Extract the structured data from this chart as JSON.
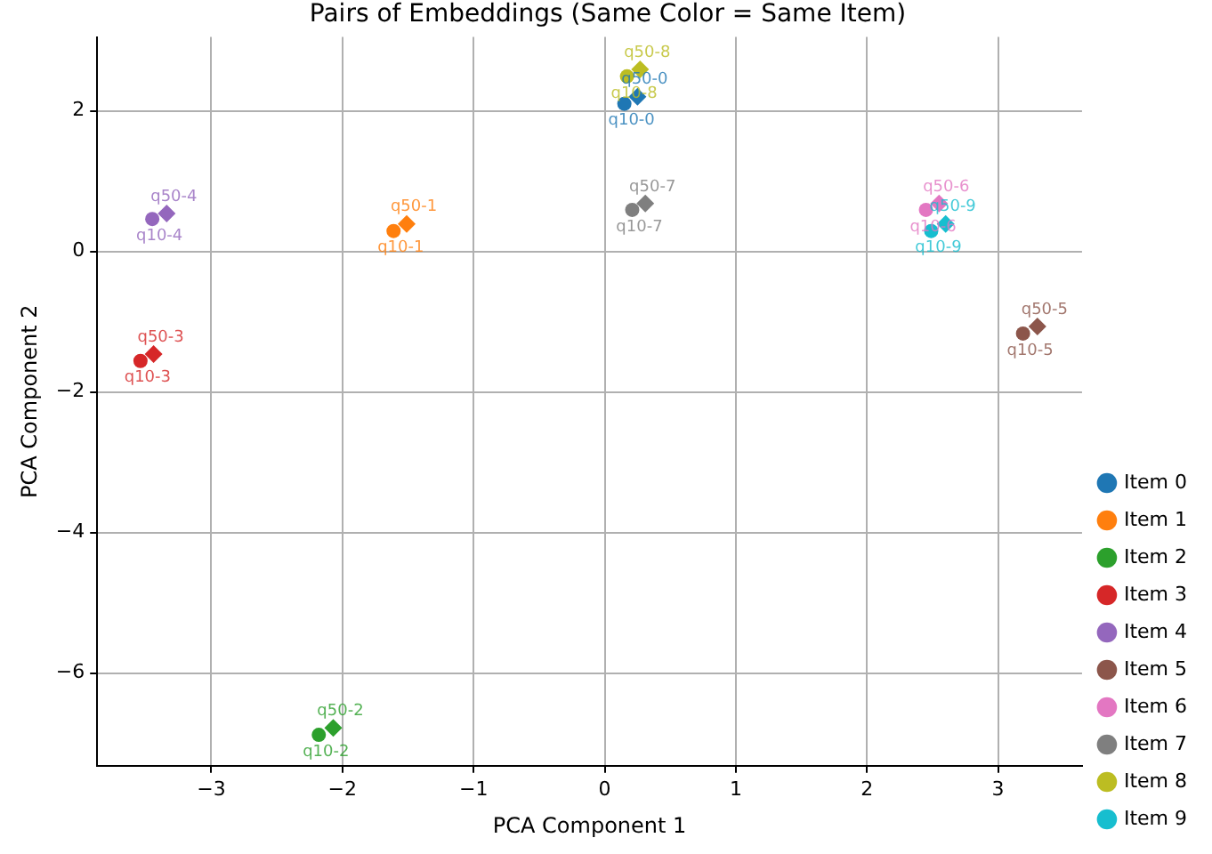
{
  "chart_data": {
    "type": "scatter",
    "title": "Pairs of Embeddings (Same Color = Same Item)",
    "xlabel": "PCA Component 1",
    "ylabel": "PCA Component 2",
    "xlim": [
      -3.87,
      3.64
    ],
    "ylim": [
      -7.32,
      3.05
    ],
    "xticks": [
      -3,
      -2,
      -1,
      0,
      1,
      2,
      3
    ],
    "yticks": [
      -6,
      -4,
      -2,
      0,
      2
    ],
    "grid": true,
    "legend": "bottom right",
    "series": [
      {
        "name": "Item 0",
        "color": "#1f77b4",
        "marker": "circle",
        "x": [
          0.15
        ],
        "values": [
          2.1
        ]
      },
      {
        "color": "#1f77b4",
        "marker": "diamond",
        "x": [
          0.25
        ],
        "values": [
          2.2
        ]
      },
      {
        "name": "Item 1",
        "color": "#ff7f0e",
        "marker": "circle",
        "x": [
          -1.61
        ],
        "values": [
          0.29
        ]
      },
      {
        "color": "#ff7f0e",
        "marker": "diamond",
        "x": [
          -1.51
        ],
        "values": [
          0.39
        ]
      },
      {
        "name": "Item 2",
        "color": "#2ca02c",
        "marker": "circle",
        "x": [
          -2.18
        ],
        "values": [
          -6.88
        ]
      },
      {
        "color": "#2ca02c",
        "marker": "diamond",
        "x": [
          -2.07
        ],
        "values": [
          -6.78
        ]
      },
      {
        "name": "Item 3",
        "color": "#d62728",
        "marker": "circle",
        "x": [
          -3.54
        ],
        "values": [
          -1.56
        ]
      },
      {
        "color": "#d62728",
        "marker": "diamond",
        "x": [
          -3.44
        ],
        "values": [
          -1.46
        ]
      },
      {
        "name": "Item 4",
        "color": "#9467bd",
        "marker": "circle",
        "x": [
          -3.45
        ],
        "values": [
          0.46
        ]
      },
      {
        "color": "#9467bd",
        "marker": "diamond",
        "x": [
          -3.34
        ],
        "values": [
          0.54
        ]
      },
      {
        "name": "Item 5",
        "color": "#8c564b",
        "marker": "circle",
        "x": [
          3.19
        ],
        "values": [
          -1.17
        ]
      },
      {
        "color": "#8c564b",
        "marker": "diamond",
        "x": [
          3.3
        ],
        "values": [
          -1.07
        ]
      },
      {
        "name": "Item 6",
        "color": "#e377c2",
        "marker": "circle",
        "x": [
          2.45
        ],
        "values": [
          0.59
        ]
      },
      {
        "color": "#e377c2",
        "marker": "diamond",
        "x": [
          2.55
        ],
        "values": [
          0.68
        ]
      },
      {
        "name": "Item 7",
        "color": "#7f7f7f",
        "marker": "circle",
        "x": [
          0.21
        ],
        "values": [
          0.59
        ]
      },
      {
        "color": "#7f7f7f",
        "marker": "diamond",
        "x": [
          0.31
        ],
        "values": [
          0.68
        ]
      },
      {
        "name": "Item 8",
        "color": "#bcbd22",
        "marker": "circle",
        "x": [
          0.17
        ],
        "values": [
          2.49
        ]
      },
      {
        "color": "#bcbd22",
        "marker": "diamond",
        "x": [
          0.27
        ],
        "values": [
          2.59
        ]
      },
      {
        "name": "Item 9",
        "color": "#17becf",
        "marker": "circle",
        "x": [
          2.49
        ],
        "values": [
          0.29
        ]
      },
      {
        "color": "#17becf",
        "marker": "diamond",
        "x": [
          2.6
        ],
        "values": [
          0.39
        ]
      }
    ],
    "annotations": [
      {
        "text": "q10-0",
        "x": 0.15,
        "y": 2.1
      },
      {
        "text": "q50-0",
        "x": 0.25,
        "y": 2.2
      },
      {
        "text": "q10-1",
        "x": -1.61,
        "y": 0.29
      },
      {
        "text": "q50-1",
        "x": -1.51,
        "y": 0.39
      },
      {
        "text": "q10-2",
        "x": -2.18,
        "y": -6.88
      },
      {
        "text": "q50-2",
        "x": -2.07,
        "y": -6.78
      },
      {
        "text": "q10-3",
        "x": -3.54,
        "y": -1.56
      },
      {
        "text": "q50-3",
        "x": -3.44,
        "y": -1.46
      },
      {
        "text": "q10-4",
        "x": -3.45,
        "y": 0.46
      },
      {
        "text": "q50-4",
        "x": -3.34,
        "y": 0.54
      },
      {
        "text": "q10-5",
        "x": 3.19,
        "y": -1.17
      },
      {
        "text": "q50-5",
        "x": 3.3,
        "y": -1.07
      },
      {
        "text": "q10-6",
        "x": 2.45,
        "y": 0.59
      },
      {
        "text": "q50-6",
        "x": 2.55,
        "y": 0.68
      },
      {
        "text": "q10-7",
        "x": 0.21,
        "y": 0.59
      },
      {
        "text": "q50-7",
        "x": 0.31,
        "y": 0.68
      },
      {
        "text": "q10-8",
        "x": 0.17,
        "y": 2.49
      },
      {
        "text": "q50-8",
        "x": 0.27,
        "y": 2.59
      },
      {
        "text": "q10-9",
        "x": 2.49,
        "y": 0.29
      },
      {
        "text": "q50-9",
        "x": 2.6,
        "y": 0.39
      }
    ]
  }
}
